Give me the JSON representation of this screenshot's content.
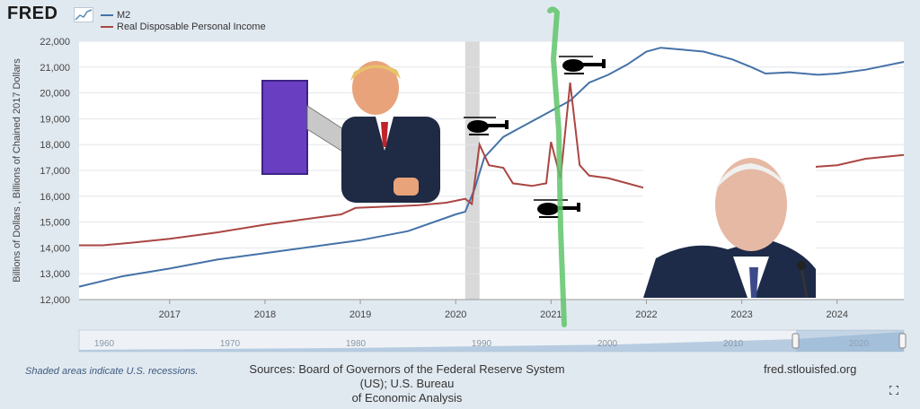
{
  "header": {
    "logo_text": "FRED"
  },
  "legend": [
    {
      "name": "M2",
      "color": "#4572a7"
    },
    {
      "name": "Real Disposable Personal Income",
      "color": "#aa4643"
    }
  ],
  "chart_data": {
    "type": "line",
    "ylabel": "Billions of Dollars , Billions of Chained 2017 Dollars",
    "ylim": [
      12000,
      22000
    ],
    "yticks": [
      "12,000",
      "13,000",
      "14,000",
      "15,000",
      "16,000",
      "17,000",
      "18,000",
      "19,000",
      "20,000",
      "21,000",
      "22,000"
    ],
    "xlim": [
      2016.05,
      2024.7
    ],
    "xticks": [
      "2017",
      "2018",
      "2019",
      "2020",
      "2021",
      "2022",
      "2023",
      "2024"
    ],
    "recession": [
      2020.1,
      2020.25
    ],
    "grid": true,
    "series": [
      {
        "name": "M2",
        "color": "#4572a7",
        "points": [
          [
            2016.05,
            12500
          ],
          [
            2016.5,
            12900
          ],
          [
            2017.0,
            13200
          ],
          [
            2017.5,
            13550
          ],
          [
            2018.0,
            13800
          ],
          [
            2018.5,
            14050
          ],
          [
            2018.9,
            14250
          ],
          [
            2019.0,
            14300
          ],
          [
            2019.5,
            14650
          ],
          [
            2020.0,
            15300
          ],
          [
            2020.1,
            15400
          ],
          [
            2020.2,
            16300
          ],
          [
            2020.3,
            17500
          ],
          [
            2020.5,
            18300
          ],
          [
            2020.7,
            18700
          ],
          [
            2021.0,
            19300
          ],
          [
            2021.2,
            19700
          ],
          [
            2021.4,
            20400
          ],
          [
            2021.6,
            20700
          ],
          [
            2021.8,
            21100
          ],
          [
            2022.0,
            21600
          ],
          [
            2022.15,
            21750
          ],
          [
            2022.3,
            21700
          ],
          [
            2022.6,
            21600
          ],
          [
            2022.9,
            21300
          ],
          [
            2023.1,
            21000
          ],
          [
            2023.25,
            20750
          ],
          [
            2023.5,
            20800
          ],
          [
            2023.8,
            20700
          ],
          [
            2024.0,
            20750
          ],
          [
            2024.3,
            20900
          ],
          [
            2024.7,
            21200
          ]
        ]
      },
      {
        "name": "Real Disposable Personal Income",
        "color": "#aa4643",
        "points": [
          [
            2016.05,
            14100
          ],
          [
            2016.3,
            14100
          ],
          [
            2016.6,
            14200
          ],
          [
            2017.0,
            14350
          ],
          [
            2017.5,
            14600
          ],
          [
            2018.0,
            14900
          ],
          [
            2018.5,
            15150
          ],
          [
            2018.8,
            15300
          ],
          [
            2018.95,
            15550
          ],
          [
            2019.3,
            15600
          ],
          [
            2019.6,
            15650
          ],
          [
            2019.9,
            15750
          ],
          [
            2020.1,
            15900
          ],
          [
            2020.17,
            15700
          ],
          [
            2020.25,
            18000
          ],
          [
            2020.35,
            17200
          ],
          [
            2020.5,
            17100
          ],
          [
            2020.6,
            16500
          ],
          [
            2020.8,
            16400
          ],
          [
            2020.95,
            16500
          ],
          [
            2021.0,
            18100
          ],
          [
            2021.1,
            16700
          ],
          [
            2021.2,
            20400
          ],
          [
            2021.3,
            17200
          ],
          [
            2021.4,
            16800
          ],
          [
            2021.6,
            16700
          ],
          [
            2021.8,
            16500
          ],
          [
            2022.0,
            16300
          ],
          [
            2022.2,
            16100
          ],
          [
            2022.4,
            16100
          ],
          [
            2022.5,
            16050
          ],
          [
            2022.7,
            16350
          ],
          [
            2022.9,
            16700
          ],
          [
            2023.2,
            16900
          ],
          [
            2023.5,
            17050
          ],
          [
            2023.8,
            17150
          ],
          [
            2024.0,
            17200
          ],
          [
            2024.3,
            17450
          ],
          [
            2024.7,
            17600
          ]
        ]
      }
    ]
  },
  "navigator": {
    "labels": [
      "1960",
      "1970",
      "1980",
      "1990",
      "2000",
      "2010",
      "2020"
    ]
  },
  "footer": {
    "recession_note": "Shaded areas indicate U.S. recessions.",
    "sources_line1": "Sources: Board of Governors of the Federal Reserve System (US); U.S. Bureau",
    "sources_line2": "of Economic Analysis",
    "site": "fred.stlouisfed.org"
  }
}
